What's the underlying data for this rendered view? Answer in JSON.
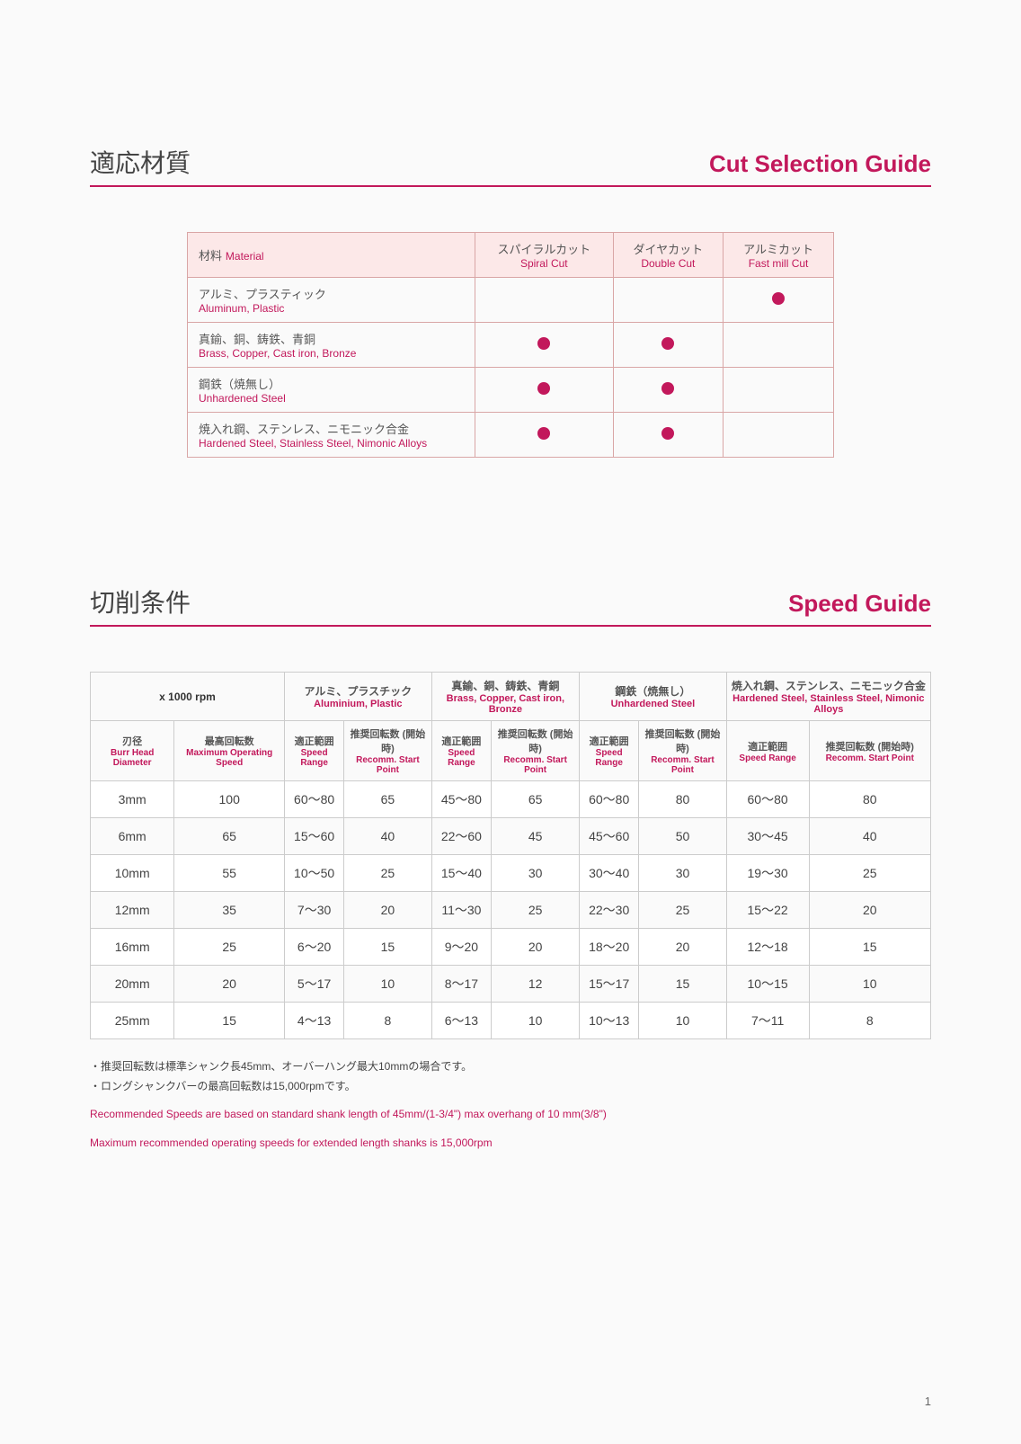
{
  "section1": {
    "title_jp": "適応材質",
    "title_en": "Cut Selection Guide"
  },
  "cut_table": {
    "headers": {
      "material_jp": "材料",
      "material_en": "Material",
      "spiral_jp": "スパイラルカット",
      "spiral_en": "Spiral Cut",
      "double_jp": "ダイヤカット",
      "double_en": "Double Cut",
      "fast_jp": "アルミカット",
      "fast_en": "Fast mill Cut"
    },
    "rows": [
      {
        "jp": "アルミ、プラスティック",
        "en": "Aluminum, Plastic",
        "spiral": false,
        "double": false,
        "fast": true
      },
      {
        "jp": "真鍮、銅、鋳鉄、青銅",
        "en": "Brass, Copper, Cast iron, Bronze",
        "spiral": true,
        "double": true,
        "fast": false
      },
      {
        "jp": "鋼鉄（焼無し）",
        "en": "Unhardened Steel",
        "spiral": true,
        "double": true,
        "fast": false
      },
      {
        "jp": "焼入れ鋼、ステンレス、ニモニック合金",
        "en": "Hardened Steel, Stainless Steel, Nimonic Alloys",
        "spiral": true,
        "double": true,
        "fast": false
      }
    ]
  },
  "section2": {
    "title_jp": "切削条件",
    "title_en": "Speed Guide"
  },
  "speed_table": {
    "unit": "x 1000 rpm",
    "groups": [
      {
        "jp": "アルミ、プラスチック",
        "en": "Aluminium, Plastic"
      },
      {
        "jp": "真鍮、銅、鋳鉄、青銅",
        "en": "Brass, Copper, Cast iron, Bronze"
      },
      {
        "jp": "鋼鉄（焼無し）",
        "en": "Unhardened Steel"
      },
      {
        "jp": "焼入れ鋼、ステンレス、ニモニック合金",
        "en": "Hardened Steel, Stainless Steel, Nimonic Alloys"
      }
    ],
    "col_dia": {
      "jp": "刃径",
      "en": "Burr Head Diameter"
    },
    "col_max": {
      "jp": "最高回転数",
      "en": "Maximum Operating Speed"
    },
    "col_range": {
      "jp": "適正範囲",
      "en": "Speed Range"
    },
    "col_recomm": {
      "jp": "推奨回転数 (開始時)",
      "en": "Recomm. Start Point"
    },
    "rows": [
      {
        "dia": "3mm",
        "max": "100",
        "v": [
          "60～80",
          "65",
          "45～80",
          "65",
          "60～80",
          "80",
          "60～80",
          "80"
        ]
      },
      {
        "dia": "6mm",
        "max": "65",
        "v": [
          "15～60",
          "40",
          "22～60",
          "45",
          "45～60",
          "50",
          "30～45",
          "40"
        ]
      },
      {
        "dia": "10mm",
        "max": "55",
        "v": [
          "10～50",
          "25",
          "15～40",
          "30",
          "30～40",
          "30",
          "19～30",
          "25"
        ]
      },
      {
        "dia": "12mm",
        "max": "35",
        "v": [
          "7～30",
          "20",
          "11～30",
          "25",
          "22～30",
          "25",
          "15～22",
          "20"
        ]
      },
      {
        "dia": "16mm",
        "max": "25",
        "v": [
          "6～20",
          "15",
          "9～20",
          "20",
          "18～20",
          "20",
          "12～18",
          "15"
        ]
      },
      {
        "dia": "20mm",
        "max": "20",
        "v": [
          "5～17",
          "10",
          "8～17",
          "12",
          "15～17",
          "15",
          "10～15",
          "10"
        ]
      },
      {
        "dia": "25mm",
        "max": "15",
        "v": [
          "4～13",
          "8",
          "6～13",
          "10",
          "10～13",
          "10",
          "7～11",
          "8"
        ]
      }
    ]
  },
  "notes": {
    "jp1": "・推奨回転数は標準シャンク長45mm、オーバーハング最大10mmの場合です。",
    "jp2": "・ロングシャンクバーの最高回転数は15,000rpmです。",
    "en1": "Recommended Speeds are based on standard shank length of 45mm/(1-3/4\") max overhang of 10 mm(3/8\")",
    "en2": "Maximum recommended operating speeds for extended length shanks is 15,000rpm"
  },
  "page_number": "1"
}
